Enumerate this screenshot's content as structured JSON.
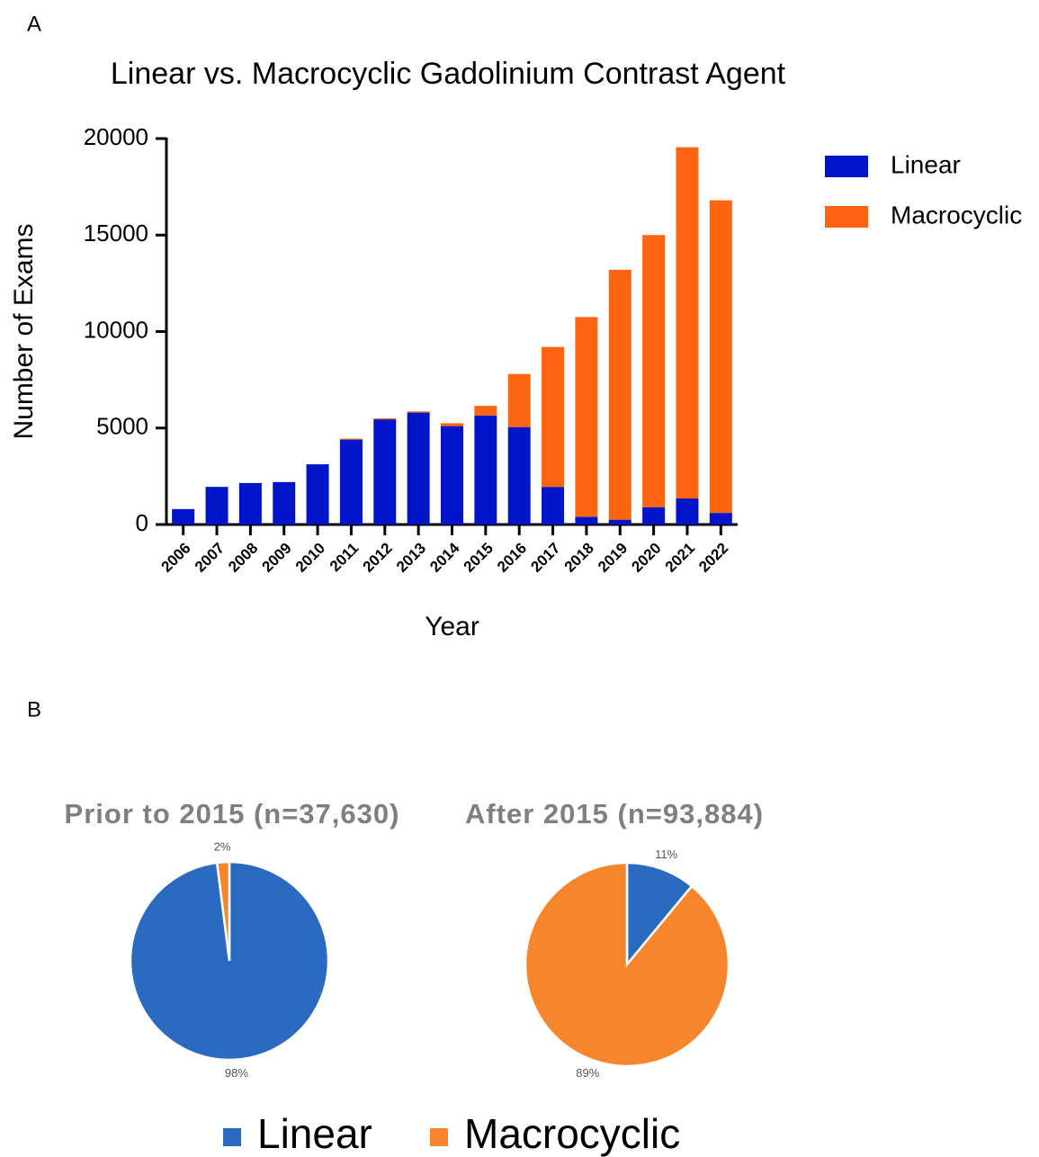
{
  "chart_data": [
    {
      "type": "bar",
      "stacked": true,
      "panel_label": "A",
      "title": "Linear vs. Macrocyclic Gadolinium Contrast Agent",
      "x_label": "Year",
      "y_label": "Number of Exams",
      "categories": [
        "2006",
        "2007",
        "2008",
        "2009",
        "2010",
        "2011",
        "2012",
        "2013",
        "2014",
        "2015",
        "2016",
        "2017",
        "2018",
        "2019",
        "2020",
        "2021",
        "2022"
      ],
      "series": [
        {
          "name": "Linear",
          "color": "#0015c8",
          "values": [
            800,
            1950,
            2150,
            2200,
            3120,
            4400,
            5450,
            5800,
            5100,
            5650,
            5050,
            1950,
            400,
            250,
            900,
            1350,
            600
          ]
        },
        {
          "name": "Macrocyclic",
          "color": "#ff6410",
          "values": [
            0,
            0,
            0,
            0,
            0,
            50,
            50,
            60,
            150,
            500,
            2750,
            7250,
            10350,
            12950,
            14100,
            18200,
            16200
          ]
        }
      ],
      "ylim": [
        0,
        20000
      ],
      "yticks": [
        0,
        5000,
        10000,
        15000,
        20000
      ],
      "legend": "right"
    },
    {
      "type": "pie",
      "panel_label": "B",
      "categories": [
        "Linear",
        "Macrocyclic"
      ],
      "colors": [
        "#2a6ac0",
        "#f7852c"
      ],
      "pies": [
        {
          "title": "Prior to 2015 (n=37,630)",
          "values": [
            98,
            2
          ],
          "value_labels": [
            "98%",
            "2%"
          ]
        },
        {
          "title": "After 2015 (n=93,884)",
          "values": [
            11,
            89
          ],
          "value_labels": [
            "11%",
            "89%"
          ]
        }
      ],
      "legend": "bottom"
    }
  ]
}
